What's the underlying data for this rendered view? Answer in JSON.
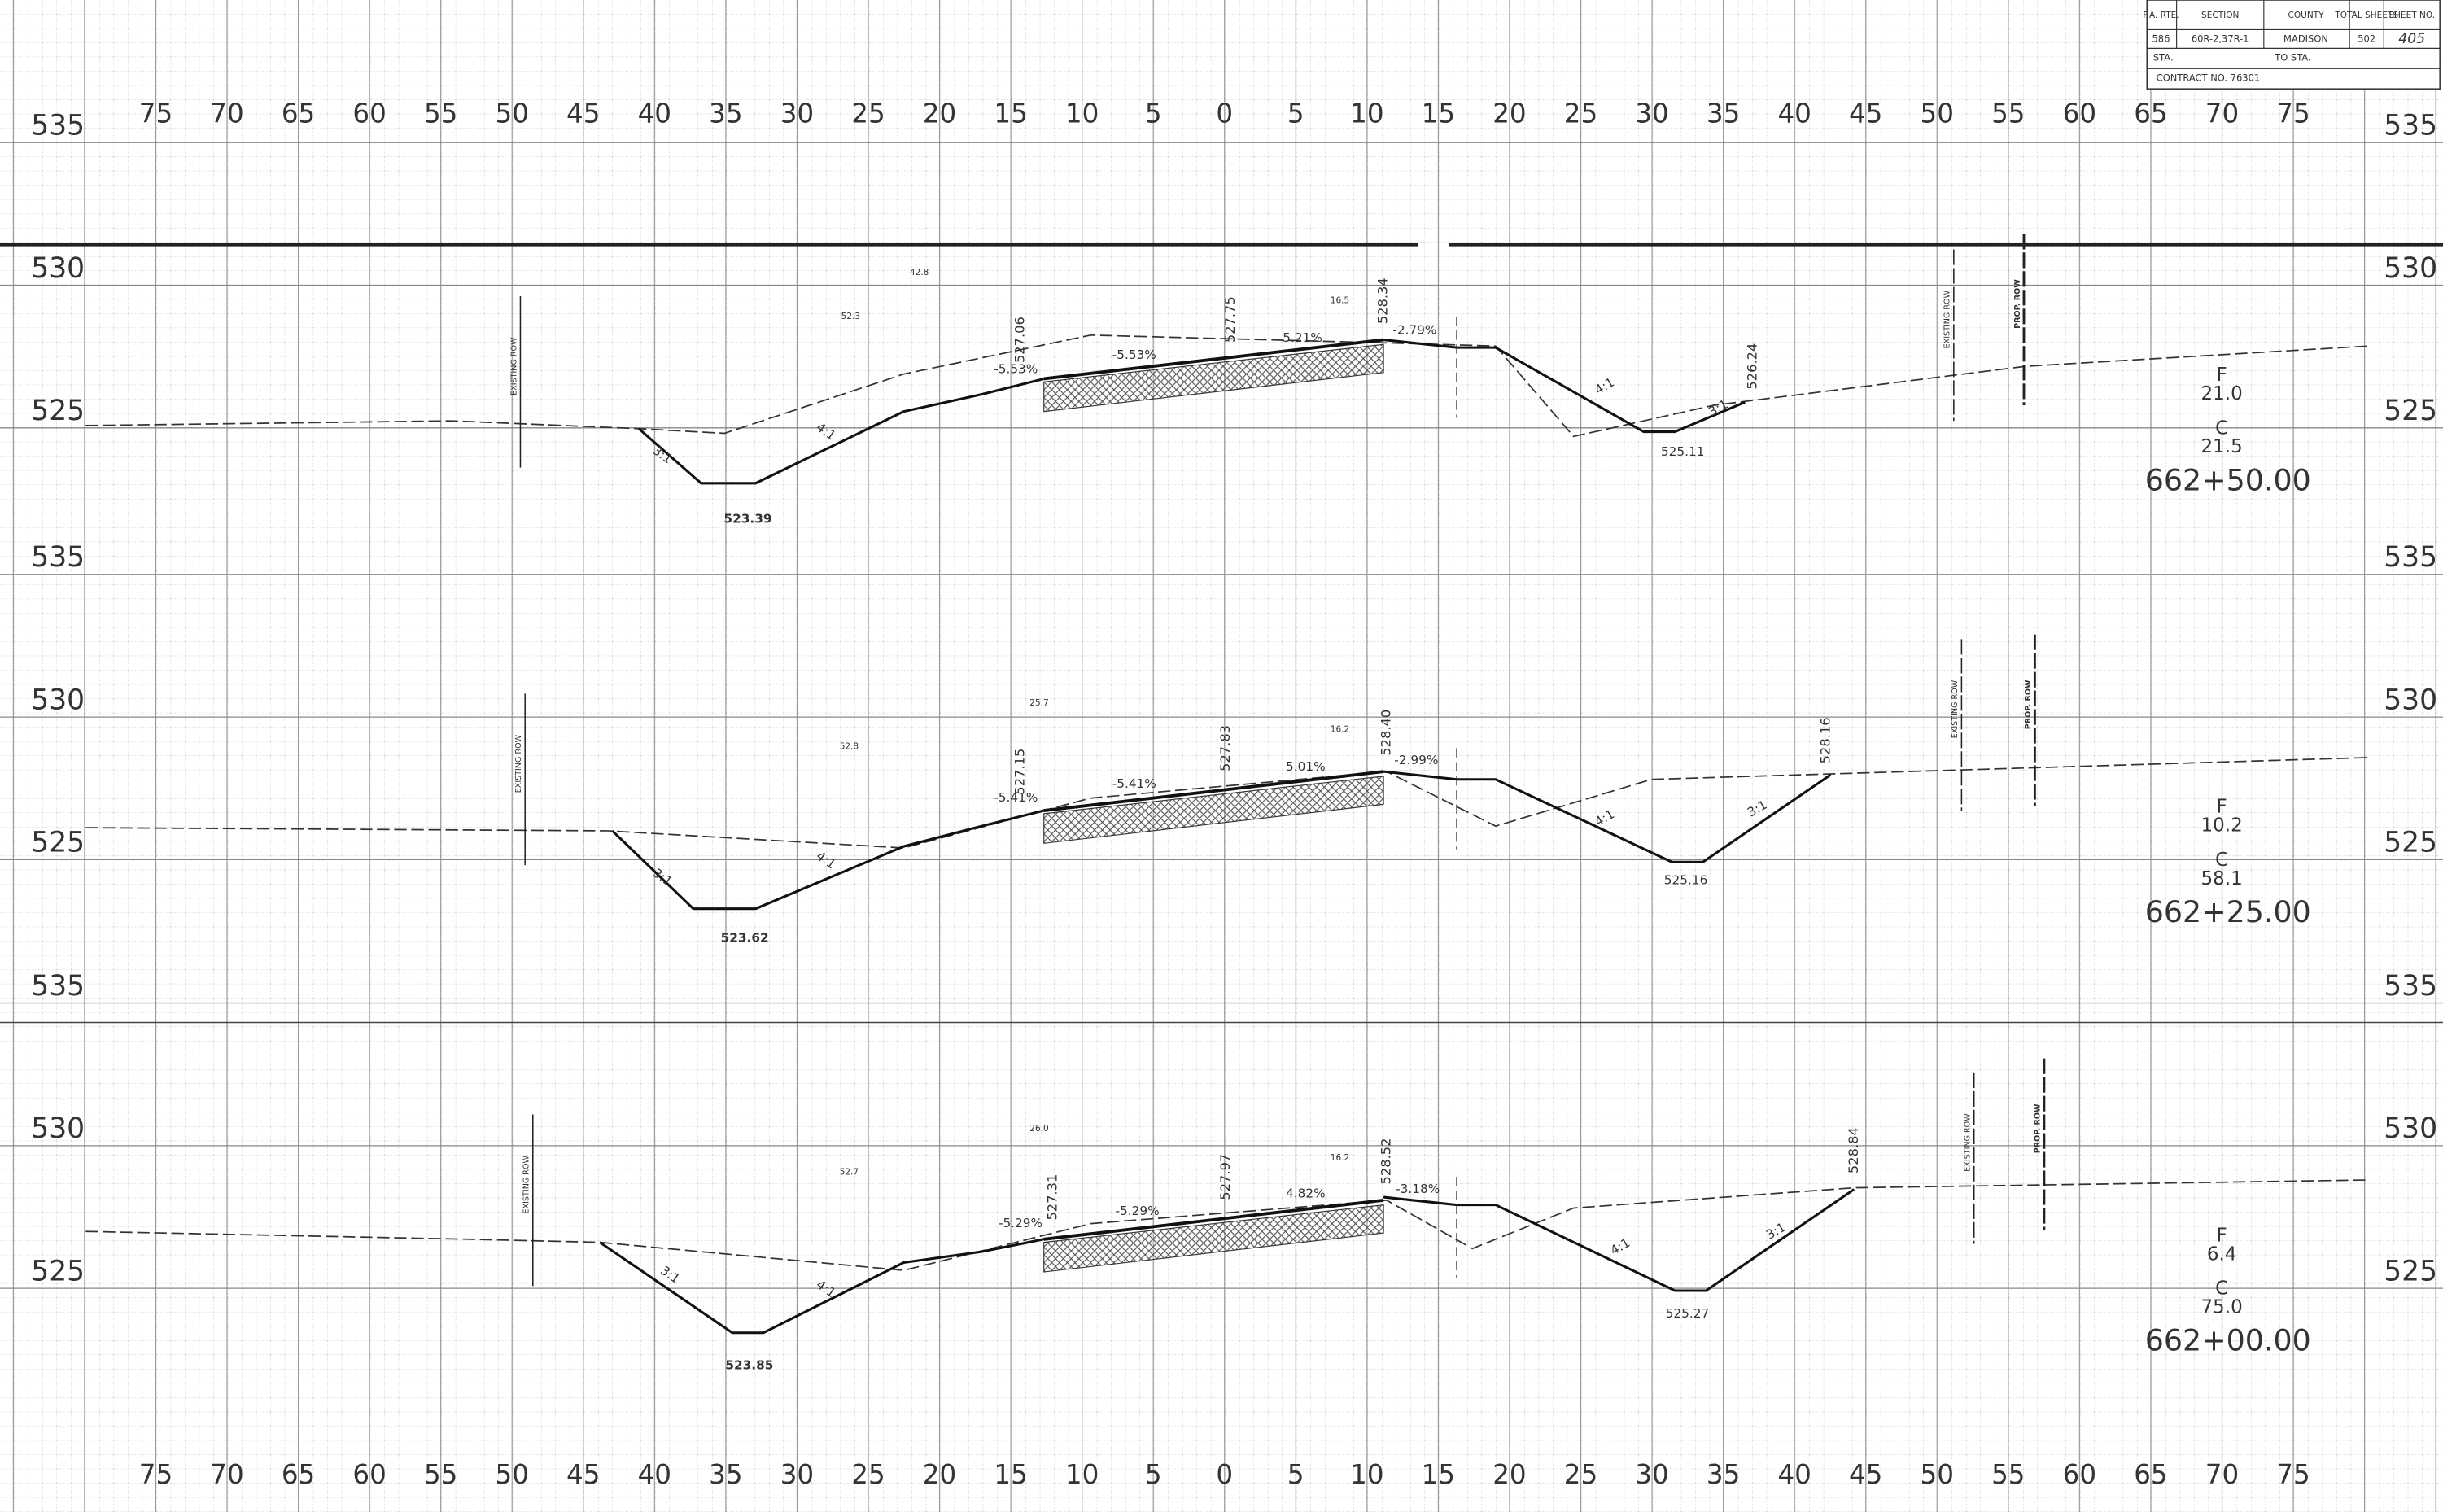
{
  "title_block": {
    "headers": [
      "F.A. RTE.",
      "SECTION",
      "COUNTY",
      "TOTAL SHEETS",
      "SHEET NO."
    ],
    "values": [
      "586",
      "60R-2,37R-1",
      "MADISON",
      "502",
      "405"
    ],
    "sta": "STA.",
    "to_sta": "TO STA.",
    "contract": "CONTRACT NO. 76301"
  },
  "offsets": [
    75,
    70,
    65,
    60,
    55,
    50,
    45,
    40,
    35,
    30,
    25,
    20,
    15,
    10,
    5,
    0,
    5,
    10,
    15,
    20,
    25,
    30,
    35,
    40,
    45,
    50,
    55,
    60,
    65,
    70,
    75
  ],
  "sections": [
    {
      "elevation_ticks": [
        535,
        530,
        525
      ],
      "station": "662+50.00",
      "fill_label": "F",
      "fill": "21.0",
      "cut_label": "C",
      "cut": "21.5",
      "elevations": [
        "523.39",
        "525.11",
        "527.06",
        "527.75",
        "528.34",
        "526.24"
      ],
      "slopes": [
        "-5.53%",
        "-5.53%",
        "5.21%",
        "-2.79%"
      ],
      "ratios": [
        "3:1",
        "4:1",
        "4:1",
        "3:1"
      ],
      "row_labels": [
        "EXISTING ROW",
        "EXISTING ROW",
        "PROP. ROW"
      ],
      "small_labels": [
        "42.8",
        "52.3",
        "16.5"
      ]
    },
    {
      "elevation_ticks": [
        535,
        530,
        525
      ],
      "station": "662+25.00",
      "fill_label": "F",
      "fill": "10.2",
      "cut_label": "C",
      "cut": "58.1",
      "elevations": [
        "523.62",
        "525.16",
        "527.15",
        "527.83",
        "528.40",
        "528.16"
      ],
      "slopes": [
        "-5.41%",
        "-5.41%",
        "5.01%",
        "-2.99%"
      ],
      "ratios": [
        "3:1",
        "4:1",
        "4:1",
        "3:1"
      ],
      "row_labels": [
        "EXISTING ROW",
        "EXISTING ROW",
        "PROP. ROW"
      ],
      "small_labels": [
        "25.7",
        "52.8",
        "16.2"
      ]
    },
    {
      "elevation_ticks": [
        535,
        530,
        525
      ],
      "station": "662+00.00",
      "fill_label": "F",
      "fill": "6.4",
      "cut_label": "C",
      "cut": "75.0",
      "elevations": [
        "523.85",
        "525.27",
        "527.31",
        "527.97",
        "528.52",
        "528.84"
      ],
      "slopes": [
        "-5.29%",
        "-5.29%",
        "4.82%",
        "-3.18%"
      ],
      "ratios": [
        "3:1",
        "4:1",
        "4:1",
        "3:1"
      ],
      "row_labels": [
        "EXISTING ROW",
        "EXISTING ROW",
        "PROP. ROW"
      ],
      "small_labels": [
        "26.0",
        "52.7",
        "16.2"
      ]
    }
  ]
}
